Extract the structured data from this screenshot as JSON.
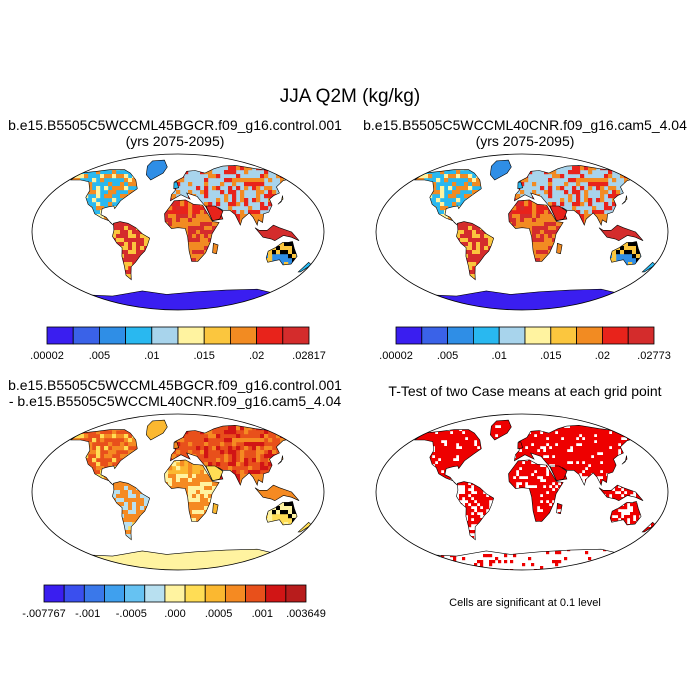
{
  "title": "JJA Q2M (kg/kg)",
  "panels": [
    {
      "id": "case1",
      "title_lines": [
        "b.e15.B5505C5WCCML45BGCR.f09_g16.control.001",
        "(yrs 2075-2095)"
      ],
      "colorbar": {
        "colors": [
          "#3a1ef0",
          "#3a62e8",
          "#2f8ee6",
          "#29b8f0",
          "#a8d4ec",
          "#fff3a0",
          "#fbc63e",
          "#f28b22",
          "#e8231b",
          "#d42c2c"
        ],
        "labels": [
          ".00002",
          ".005",
          ".01",
          ".015",
          ".02",
          ".02817"
        ]
      }
    },
    {
      "id": "case2",
      "title_lines": [
        "b.e15.B5505C5WCCML40CNR.f09_g16.cam5_4.04",
        "(yrs 2075-2095)"
      ],
      "colorbar": {
        "colors": [
          "#3a1ef0",
          "#3a62e8",
          "#2f8ee6",
          "#29b8f0",
          "#a8d4ec",
          "#fff3a0",
          "#fbc63e",
          "#f28b22",
          "#e8231b",
          "#d42c2c"
        ],
        "labels": [
          ".00002",
          ".005",
          ".01",
          ".015",
          ".02",
          ".02773"
        ]
      }
    },
    {
      "id": "difference",
      "title_lines": [
        "b.e15.B5505C5WCCML45BGCR.f09_g16.control.001",
        "- b.e15.B5505C5WCCML40CNR.f09_g16.cam5_4.04"
      ],
      "colorbar": {
        "colors": [
          "#3a1ef0",
          "#3a4fee",
          "#3a78ea",
          "#3fa0ee",
          "#66c2f2",
          "#b8e0f0",
          "#fff3a0",
          "#ffdd55",
          "#fbb830",
          "#f58a22",
          "#e8501b",
          "#d11515",
          "#b81c1c"
        ],
        "labels": [
          "-.007767",
          "-.001",
          "-.0005",
          ".000",
          ".0005",
          ".001",
          ".003649"
        ]
      }
    },
    {
      "id": "ttest",
      "title_lines": [
        "T-Test of two Case means at each grid point"
      ],
      "note": "Cells are significant at 0.1 level"
    }
  ],
  "map_colors": {
    "ocean": "#ffffff",
    "coast": "#000000",
    "significant": "#ee0000",
    "antarctica_case": "#3a1ef0",
    "antarctica_diff": "#fff3a0"
  }
}
